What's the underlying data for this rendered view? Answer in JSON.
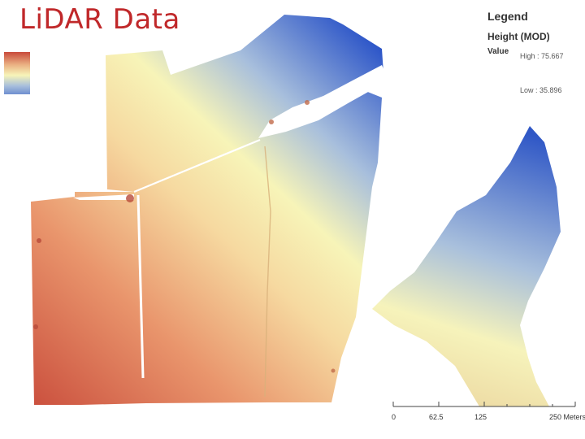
{
  "title": "LiDAR Data",
  "legend": {
    "heading": "Legend",
    "layer_name": "Height (MOD)",
    "field_name": "Value",
    "high_label": "High : 75.667",
    "low_label": "Low : 35.896",
    "high_value": 75.667,
    "low_value": 35.896
  },
  "colors": {
    "ramp_high": "#c84a3a",
    "ramp_mid_high": "#e9b182",
    "ramp_mid": "#f7f4b8",
    "ramp_mid_low": "#9fb7d8",
    "ramp_low": "#2c55c8",
    "title": "#c0282a"
  },
  "scalebar": {
    "ticks": [
      "0",
      "62.5",
      "125",
      "250 Meters"
    ],
    "unit": "Meters"
  }
}
